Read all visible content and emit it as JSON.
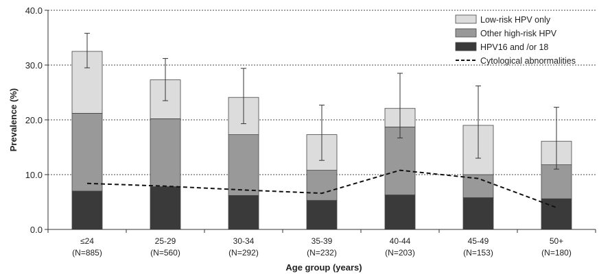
{
  "chart_data": {
    "type": "bar",
    "stacked": true,
    "title": "",
    "xlabel": "Age group (years)",
    "ylabel": "Prevalence (%)",
    "ylim": [
      0,
      40
    ],
    "yticks": [
      "0.0",
      "10.0",
      "20.0",
      "30.0",
      "40.0"
    ],
    "grid": "horizontal dotted",
    "legend_position": "top-right",
    "categories": [
      "≤24",
      "25-29",
      "30-34",
      "35-39",
      "40-44",
      "45-49",
      "50+"
    ],
    "category_counts": [
      "(N=885)",
      "(N=560)",
      "(N=292)",
      "(N=232)",
      "(N=203)",
      "(N=153)",
      "(N=180)"
    ],
    "series": [
      {
        "name": "HPV16  and /or 18",
        "color": "#3a3a3a",
        "values": [
          7.0,
          7.8,
          6.2,
          5.3,
          6.3,
          5.8,
          5.6
        ]
      },
      {
        "name": "Other high-risk HPV",
        "color": "#999999",
        "values": [
          14.2,
          12.4,
          11.1,
          5.5,
          12.4,
          4.2,
          6.2
        ]
      },
      {
        "name": "Low-risk HPV only",
        "color": "#dcdcdc",
        "values": [
          11.3,
          7.1,
          6.8,
          6.5,
          3.4,
          9.0,
          4.3
        ]
      }
    ],
    "error_bars": [
      {
        "total": 32.5,
        "low": 29.5,
        "high": 35.8
      },
      {
        "total": 27.3,
        "low": 23.5,
        "high": 31.2
      },
      {
        "total": 24.1,
        "low": 19.3,
        "high": 29.4
      },
      {
        "total": 17.3,
        "low": 12.6,
        "high": 22.7
      },
      {
        "total": 22.1,
        "low": 16.7,
        "high": 28.5
      },
      {
        "total": 19.0,
        "low": 13.0,
        "high": 26.2
      },
      {
        "total": 16.1,
        "low": 11.0,
        "high": 22.3
      }
    ],
    "line_series": {
      "name": "Cytological abnormalities",
      "style": "dashed",
      "color": "#111111",
      "values": [
        8.4,
        7.9,
        7.2,
        6.6,
        10.8,
        9.3,
        4.0
      ]
    },
    "legend": [
      "Low-risk HPV only",
      "Other high-risk HPV",
      "HPV16  and /or 18",
      "Cytological abnormalities"
    ]
  }
}
